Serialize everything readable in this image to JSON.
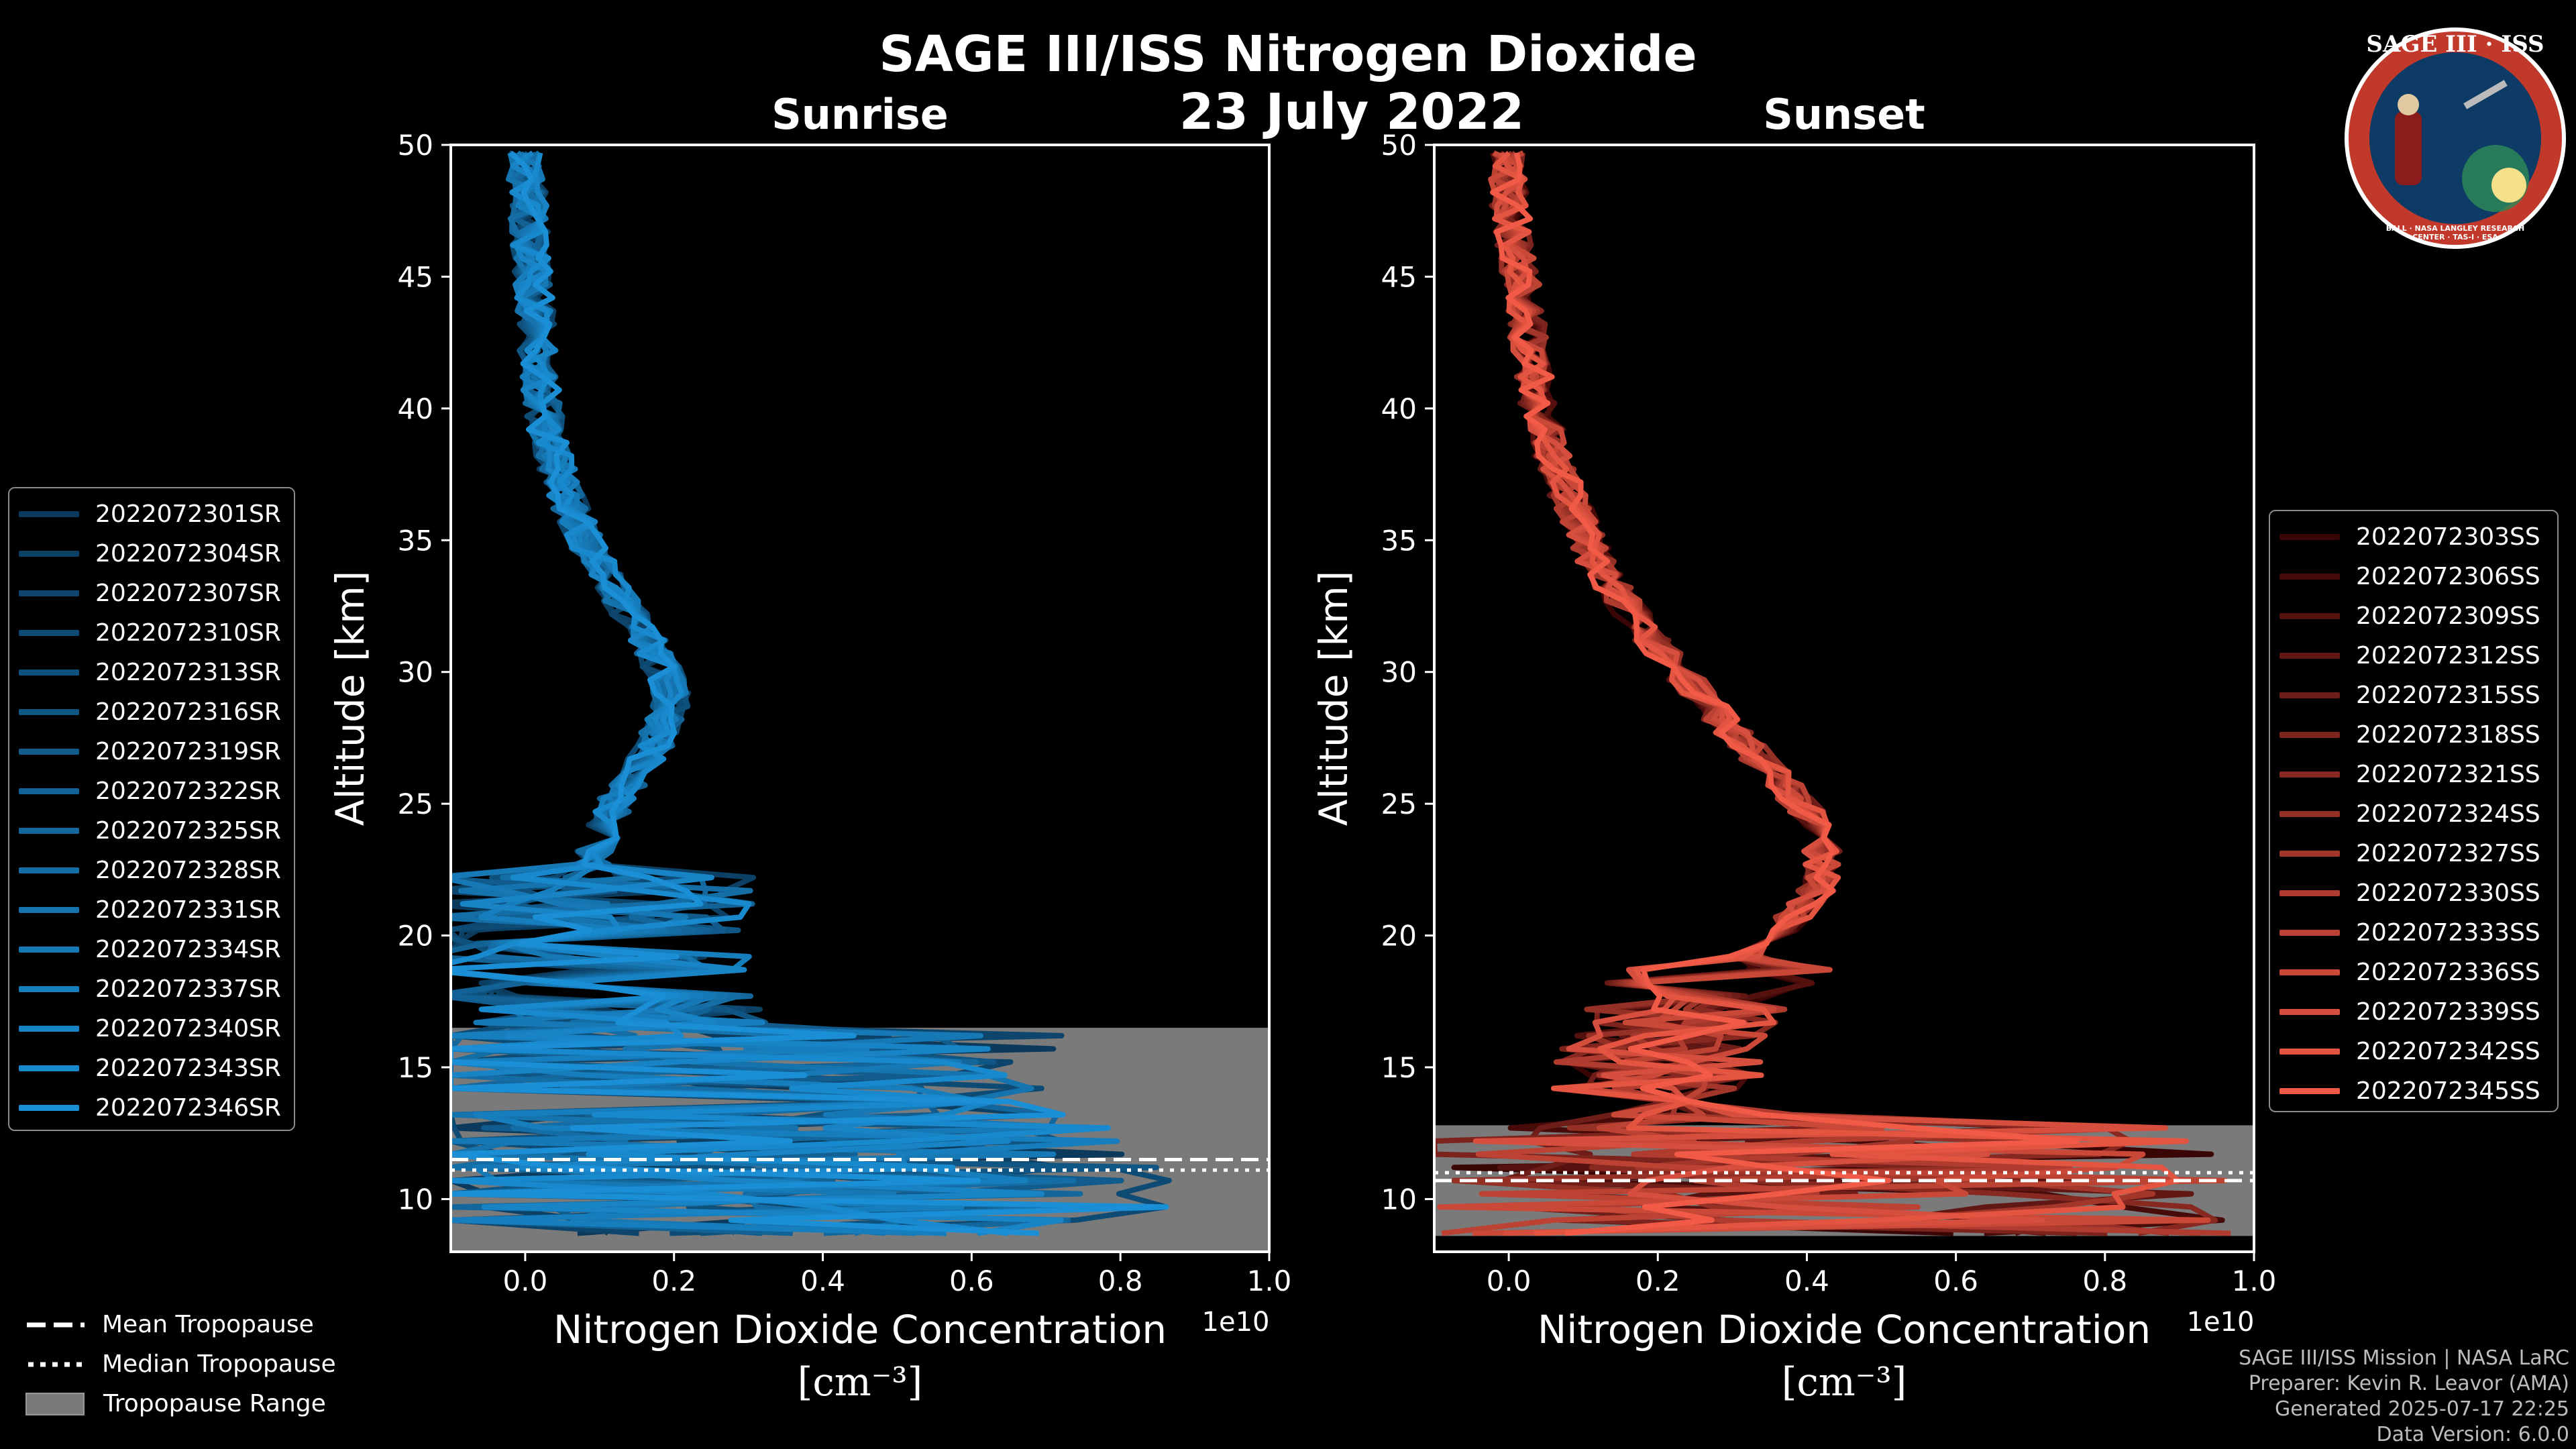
{
  "header": {
    "title": "SAGE III/ISS Nitrogen Dioxide",
    "date": "23 July 2022"
  },
  "logo": {
    "text": "SAGE III · ISS",
    "ring_text": "BALL · NASA LANGLEY RESEARCH CENTER · TAS-I · ESA",
    "colors": {
      "ring": "#c0392b",
      "field": "#0d3b66",
      "text": "#ffffff"
    }
  },
  "chart_data": [
    {
      "type": "line",
      "title": "Sunrise",
      "xlabel": "Nitrogen Dioxide Concentration",
      "xunit": "[cm⁻³]",
      "ylabel": "Altitude [km]",
      "x_offset_label": "1e10",
      "xlim": [
        -0.1,
        1.0
      ],
      "ylim": [
        8,
        50
      ],
      "xticks": [
        0.0,
        0.2,
        0.4,
        0.6,
        0.8,
        1.0
      ],
      "xtick_labels": [
        "0.0",
        "0.2",
        "0.4",
        "0.6",
        "0.8",
        "1.0"
      ],
      "yticks": [
        10,
        15,
        20,
        25,
        30,
        35,
        40,
        45,
        50
      ],
      "legend_position": "left",
      "tropopause_range": [
        8,
        16.5
      ],
      "tropopause_mean": 11.5,
      "tropopause_median": 11.1,
      "series_color_dark": "#0b3a5c",
      "series_color_light": "#1a8fd6",
      "mean_profile": [
        {
          "alt": 9,
          "x": 0.3
        },
        {
          "alt": 12,
          "x": 0.25
        },
        {
          "alt": 15,
          "x": 0.15
        },
        {
          "alt": 17,
          "x": 0.1
        },
        {
          "alt": 19,
          "x": 0.08
        },
        {
          "alt": 21,
          "x": 0.08
        },
        {
          "alt": 23,
          "x": 0.09
        },
        {
          "alt": 25,
          "x": 0.12
        },
        {
          "alt": 27,
          "x": 0.17
        },
        {
          "alt": 29,
          "x": 0.2
        },
        {
          "alt": 31,
          "x": 0.17
        },
        {
          "alt": 33,
          "x": 0.12
        },
        {
          "alt": 35,
          "x": 0.08
        },
        {
          "alt": 37,
          "x": 0.05
        },
        {
          "alt": 39,
          "x": 0.03
        },
        {
          "alt": 41,
          "x": 0.02
        },
        {
          "alt": 43,
          "x": 0.015
        },
        {
          "alt": 45,
          "x": 0.01
        },
        {
          "alt": 47,
          "x": 0.005
        },
        {
          "alt": 50,
          "x": 0.0
        }
      ],
      "series": [
        {
          "name": "2022072301SR"
        },
        {
          "name": "2022072304SR"
        },
        {
          "name": "2022072307SR"
        },
        {
          "name": "2022072310SR"
        },
        {
          "name": "2022072313SR"
        },
        {
          "name": "2022072316SR"
        },
        {
          "name": "2022072319SR"
        },
        {
          "name": "2022072322SR"
        },
        {
          "name": "2022072325SR"
        },
        {
          "name": "2022072328SR"
        },
        {
          "name": "2022072331SR"
        },
        {
          "name": "2022072334SR"
        },
        {
          "name": "2022072337SR"
        },
        {
          "name": "2022072340SR"
        },
        {
          "name": "2022072343SR"
        },
        {
          "name": "2022072346SR"
        }
      ]
    },
    {
      "type": "line",
      "title": "Sunset",
      "xlabel": "Nitrogen Dioxide Concentration",
      "xunit": "[cm⁻³]",
      "ylabel": "Altitude [km]",
      "x_offset_label": "1e10",
      "xlim": [
        -0.1,
        1.0
      ],
      "ylim": [
        8,
        50
      ],
      "xticks": [
        0.0,
        0.2,
        0.4,
        0.6,
        0.8,
        1.0
      ],
      "xtick_labels": [
        "0.0",
        "0.2",
        "0.4",
        "0.6",
        "0.8",
        "1.0"
      ],
      "yticks": [
        10,
        15,
        20,
        25,
        30,
        35,
        40,
        45,
        50
      ],
      "legend_position": "right",
      "tropopause_range": [
        8.6,
        12.8
      ],
      "tropopause_mean": 10.7,
      "tropopause_median": 11.0,
      "series_color_dark": "#3a0505",
      "series_color_light": "#f05a46",
      "mean_profile": [
        {
          "alt": 9,
          "x": 0.4
        },
        {
          "alt": 12,
          "x": 0.35
        },
        {
          "alt": 14,
          "x": 0.2
        },
        {
          "alt": 16,
          "x": 0.2
        },
        {
          "alt": 18,
          "x": 0.26
        },
        {
          "alt": 20,
          "x": 0.36
        },
        {
          "alt": 22,
          "x": 0.42
        },
        {
          "alt": 24,
          "x": 0.42
        },
        {
          "alt": 26,
          "x": 0.36
        },
        {
          "alt": 28,
          "x": 0.29
        },
        {
          "alt": 30,
          "x": 0.23
        },
        {
          "alt": 32,
          "x": 0.17
        },
        {
          "alt": 34,
          "x": 0.12
        },
        {
          "alt": 36,
          "x": 0.09
        },
        {
          "alt": 38,
          "x": 0.06
        },
        {
          "alt": 40,
          "x": 0.04
        },
        {
          "alt": 42,
          "x": 0.03
        },
        {
          "alt": 44,
          "x": 0.02
        },
        {
          "alt": 46,
          "x": 0.01
        },
        {
          "alt": 48,
          "x": 0.0
        },
        {
          "alt": 50,
          "x": 0.0
        }
      ],
      "series": [
        {
          "name": "2022072303SS"
        },
        {
          "name": "2022072306SS"
        },
        {
          "name": "2022072309SS"
        },
        {
          "name": "2022072312SS"
        },
        {
          "name": "2022072315SS"
        },
        {
          "name": "2022072318SS"
        },
        {
          "name": "2022072321SS"
        },
        {
          "name": "2022072324SS"
        },
        {
          "name": "2022072327SS"
        },
        {
          "name": "2022072330SS"
        },
        {
          "name": "2022072333SS"
        },
        {
          "name": "2022072336SS"
        },
        {
          "name": "2022072339SS"
        },
        {
          "name": "2022072342SS"
        },
        {
          "name": "2022072345SS"
        }
      ]
    }
  ],
  "tropopause_legend": {
    "mean_label": "Mean Tropopause",
    "median_label": "Median Tropopause",
    "range_label": "Tropopause Range",
    "range_color": "#7a7a7a"
  },
  "credits": {
    "mission": "SAGE III/ISS Mission | NASA LaRC",
    "preparer": "Preparer: Kevin R. Leavor (AMA)",
    "generated": "Generated 2025-07-17 22:25",
    "version": "Data Version: 6.0.0"
  }
}
